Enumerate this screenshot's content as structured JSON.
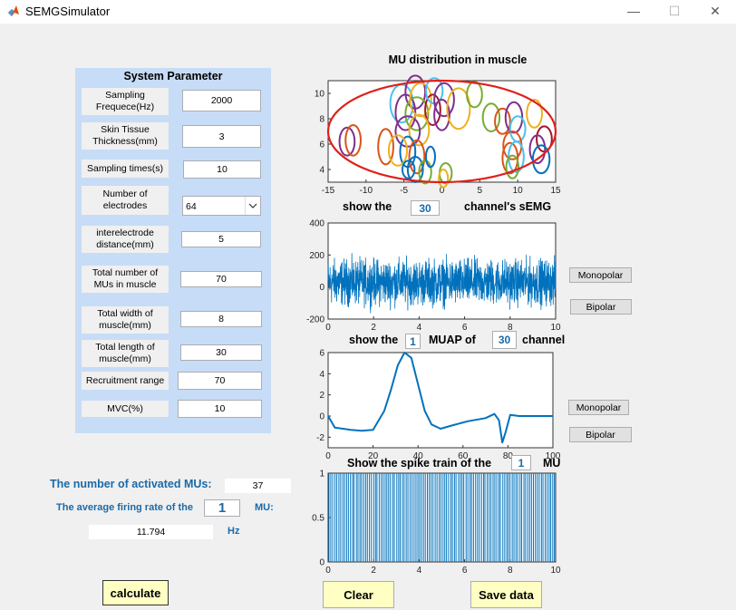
{
  "window": {
    "title": "SEMGSimulator",
    "minimize": "—",
    "maximize": "☐",
    "close": "✕"
  },
  "system_panel": {
    "title": "System Parameter",
    "params": [
      {
        "label": "Sampling Frequece(Hz)",
        "value": "2000"
      },
      {
        "label": "Skin Tissue Thickness(mm)",
        "value": "3"
      },
      {
        "label": "Sampling times(s)",
        "value": "10"
      },
      {
        "label": "Number of electrodes",
        "value": "64"
      },
      {
        "label": "interelectrode distance(mm)",
        "value": "5"
      },
      {
        "label": "Total number of MUs in muscle",
        "value": "70"
      },
      {
        "label": "Total width of muscle(mm)",
        "value": "8"
      },
      {
        "label": "Total length of muscle(mm)",
        "value": "30"
      },
      {
        "label": "Recruitment range",
        "value": "70"
      },
      {
        "label": "MVC(%)",
        "value": "10"
      }
    ]
  },
  "results": {
    "activated_label": "The number of activated MUs:",
    "activated_value": "37",
    "firing_label": "The average firing rate of the",
    "firing_mu_index": "1",
    "firing_mu_suffix": "MU:",
    "firing_value": "11.794",
    "firing_unit": "Hz"
  },
  "buttons": {
    "calculate": "calculate",
    "clear": "Clear",
    "save": "Save data",
    "monopolar": "Monopolar",
    "bipolar": "Bipolar"
  },
  "chart_data": [
    {
      "type": "scatter",
      "title": "MU distribution in muscle",
      "xlim": [
        -15,
        15
      ],
      "ylim": [
        3,
        11
      ],
      "xticks": [
        "-15",
        "-10",
        "-5",
        "0",
        "5",
        "10",
        "15"
      ],
      "yticks": [
        "4",
        "6",
        "8",
        "10"
      ],
      "boundary_ellipse": {
        "cx": 0,
        "cy": 7,
        "rx": 15,
        "ry": 4,
        "color": "#e0201b"
      },
      "mu_circles": [
        {
          "x": -5.3,
          "y": 9.2,
          "rx": 1.5,
          "ry": 1.5,
          "color": "#4dbeee"
        },
        {
          "x": -4.8,
          "y": 8.5,
          "rx": 1.3,
          "ry": 1.4,
          "color": "#7e2f8e"
        },
        {
          "x": -3.5,
          "y": 10.1,
          "rx": 1.3,
          "ry": 1.3,
          "color": "#7e2f8e"
        },
        {
          "x": -3.3,
          "y": 8.4,
          "rx": 1.5,
          "ry": 1.3,
          "color": "#77ac30"
        },
        {
          "x": -2.8,
          "y": 9.5,
          "rx": 1.4,
          "ry": 1.3,
          "color": "#edb120"
        },
        {
          "x": -1.2,
          "y": 8.7,
          "rx": 1.0,
          "ry": 1.2,
          "color": "#a2142f"
        },
        {
          "x": -1.0,
          "y": 10.2,
          "rx": 1.1,
          "ry": 1.0,
          "color": "#4dbeee"
        },
        {
          "x": 0.3,
          "y": 9.5,
          "rx": 1.3,
          "ry": 1.3,
          "color": "#7e2f8e"
        },
        {
          "x": 0.0,
          "y": 8.3,
          "rx": 1.0,
          "ry": 1.2,
          "color": "#7e2f8e"
        },
        {
          "x": 2.2,
          "y": 8.8,
          "rx": 1.5,
          "ry": 1.6,
          "color": "#edb120"
        },
        {
          "x": 4.3,
          "y": 9.9,
          "rx": 1.0,
          "ry": 1.0,
          "color": "#77ac30"
        },
        {
          "x": -4.5,
          "y": 7.0,
          "rx": 1.6,
          "ry": 1.2,
          "color": "#7e2f8e"
        },
        {
          "x": -3.0,
          "y": 7.1,
          "rx": 1.3,
          "ry": 1.2,
          "color": "#edb120"
        },
        {
          "x": -4.5,
          "y": 5.4,
          "rx": 1.0,
          "ry": 1.2,
          "color": "#0072bd"
        },
        {
          "x": -3.3,
          "y": 5.0,
          "rx": 1.0,
          "ry": 1.3,
          "color": "#d95319"
        },
        {
          "x": -3.5,
          "y": 4.0,
          "rx": 1.0,
          "ry": 1.0,
          "color": "#0072bd"
        },
        {
          "x": -2.2,
          "y": 3.8,
          "rx": 0.8,
          "ry": 0.9,
          "color": "#77ac30"
        },
        {
          "x": -1.5,
          "y": 5.0,
          "rx": 0.6,
          "ry": 0.8,
          "color": "#0072bd"
        },
        {
          "x": 0.5,
          "y": 3.7,
          "rx": 0.8,
          "ry": 0.8,
          "color": "#77ac30"
        },
        {
          "x": 0.2,
          "y": 3.3,
          "rx": 0.6,
          "ry": 0.7,
          "color": "#edb120"
        },
        {
          "x": -12.5,
          "y": 6.2,
          "rx": 1.0,
          "ry": 1.1,
          "color": "#7e2f8e"
        },
        {
          "x": -11.7,
          "y": 6.3,
          "rx": 1.0,
          "ry": 1.2,
          "color": "#d95319"
        },
        {
          "x": -7.4,
          "y": 5.8,
          "rx": 1.0,
          "ry": 1.4,
          "color": "#d95319"
        },
        {
          "x": -5.8,
          "y": 5.5,
          "rx": 1.2,
          "ry": 1.2,
          "color": "#edb120"
        },
        {
          "x": 6.5,
          "y": 8.1,
          "rx": 1.1,
          "ry": 1.1,
          "color": "#77ac30"
        },
        {
          "x": 8.0,
          "y": 7.8,
          "rx": 1.0,
          "ry": 1.0,
          "color": "#d95319"
        },
        {
          "x": 9.5,
          "y": 8.1,
          "rx": 1.1,
          "ry": 1.2,
          "color": "#7e2f8e"
        },
        {
          "x": 10.0,
          "y": 7.2,
          "rx": 1.0,
          "ry": 1.0,
          "color": "#4dbeee"
        },
        {
          "x": 12.2,
          "y": 8.4,
          "rx": 1.0,
          "ry": 1.1,
          "color": "#edb120"
        },
        {
          "x": 13.5,
          "y": 6.4,
          "rx": 1.0,
          "ry": 1.0,
          "color": "#a2142f"
        },
        {
          "x": 9.3,
          "y": 5.9,
          "rx": 1.2,
          "ry": 1.1,
          "color": "#d95319"
        },
        {
          "x": 9.0,
          "y": 4.9,
          "rx": 1.0,
          "ry": 1.2,
          "color": "#d95319"
        },
        {
          "x": 9.8,
          "y": 5.0,
          "rx": 1.0,
          "ry": 1.2,
          "color": "#4dbeee"
        },
        {
          "x": 9.3,
          "y": 4.2,
          "rx": 0.8,
          "ry": 0.9,
          "color": "#77ac30"
        },
        {
          "x": 12.6,
          "y": 5.6,
          "rx": 1.0,
          "ry": 1.1,
          "color": "#7e2f8e"
        },
        {
          "x": 13.1,
          "y": 4.8,
          "rx": 1.1,
          "ry": 1.1,
          "color": "#0072bd"
        },
        {
          "x": -4.4,
          "y": 4.0,
          "rx": 0.8,
          "ry": 0.7,
          "color": "#0072bd"
        }
      ]
    },
    {
      "type": "line",
      "label_prefix": "show the",
      "channel": "30",
      "label_suffix": "channel's sEMG",
      "xlim": [
        0,
        10
      ],
      "ylim": [
        -200,
        400
      ],
      "xticks": [
        "0",
        "2",
        "4",
        "6",
        "8",
        "10"
      ],
      "yticks": [
        "-200",
        "0",
        "200",
        "400"
      ],
      "color": "#0072bd",
      "signal": {
        "kind": "noise",
        "amplitude": 170,
        "center": 30
      }
    },
    {
      "type": "line",
      "label_prefix": "show the",
      "mu": "1",
      "label_mid": "MUAP of",
      "channel": "30",
      "label_suffix": "channel",
      "xlim": [
        0,
        100
      ],
      "ylim": [
        -3,
        6
      ],
      "xticks": [
        "0",
        "20",
        "40",
        "60",
        "80",
        "100"
      ],
      "yticks": [
        "-2",
        "0",
        "2",
        "4",
        "6"
      ],
      "color": "#0072bd",
      "x": [
        0,
        3,
        10,
        15,
        20,
        25,
        28,
        31,
        34,
        37,
        40,
        43,
        46,
        50,
        55,
        62,
        70,
        74,
        76,
        77.5,
        79,
        81,
        85,
        90,
        100
      ],
      "y": [
        0,
        -1.1,
        -1.3,
        -1.4,
        -1.3,
        0.5,
        2.5,
        4.8,
        6.0,
        5.5,
        3.0,
        0.5,
        -0.8,
        -1.2,
        -0.9,
        -0.5,
        -0.2,
        0.2,
        -0.4,
        -2.5,
        -1.5,
        0.1,
        0.0,
        0.0,
        0.0
      ]
    },
    {
      "type": "bar",
      "label_prefix": "Show the spike train of the",
      "mu": "1",
      "label_suffix": "MU",
      "xlim": [
        0,
        10
      ],
      "ylim": [
        0,
        1
      ],
      "xticks": [
        "0",
        "2",
        "4",
        "6",
        "8",
        "10"
      ],
      "yticks": [
        "0",
        "0.5",
        "1"
      ],
      "color": "#0072bd",
      "firing_rate_hz": 11.794
    }
  ]
}
